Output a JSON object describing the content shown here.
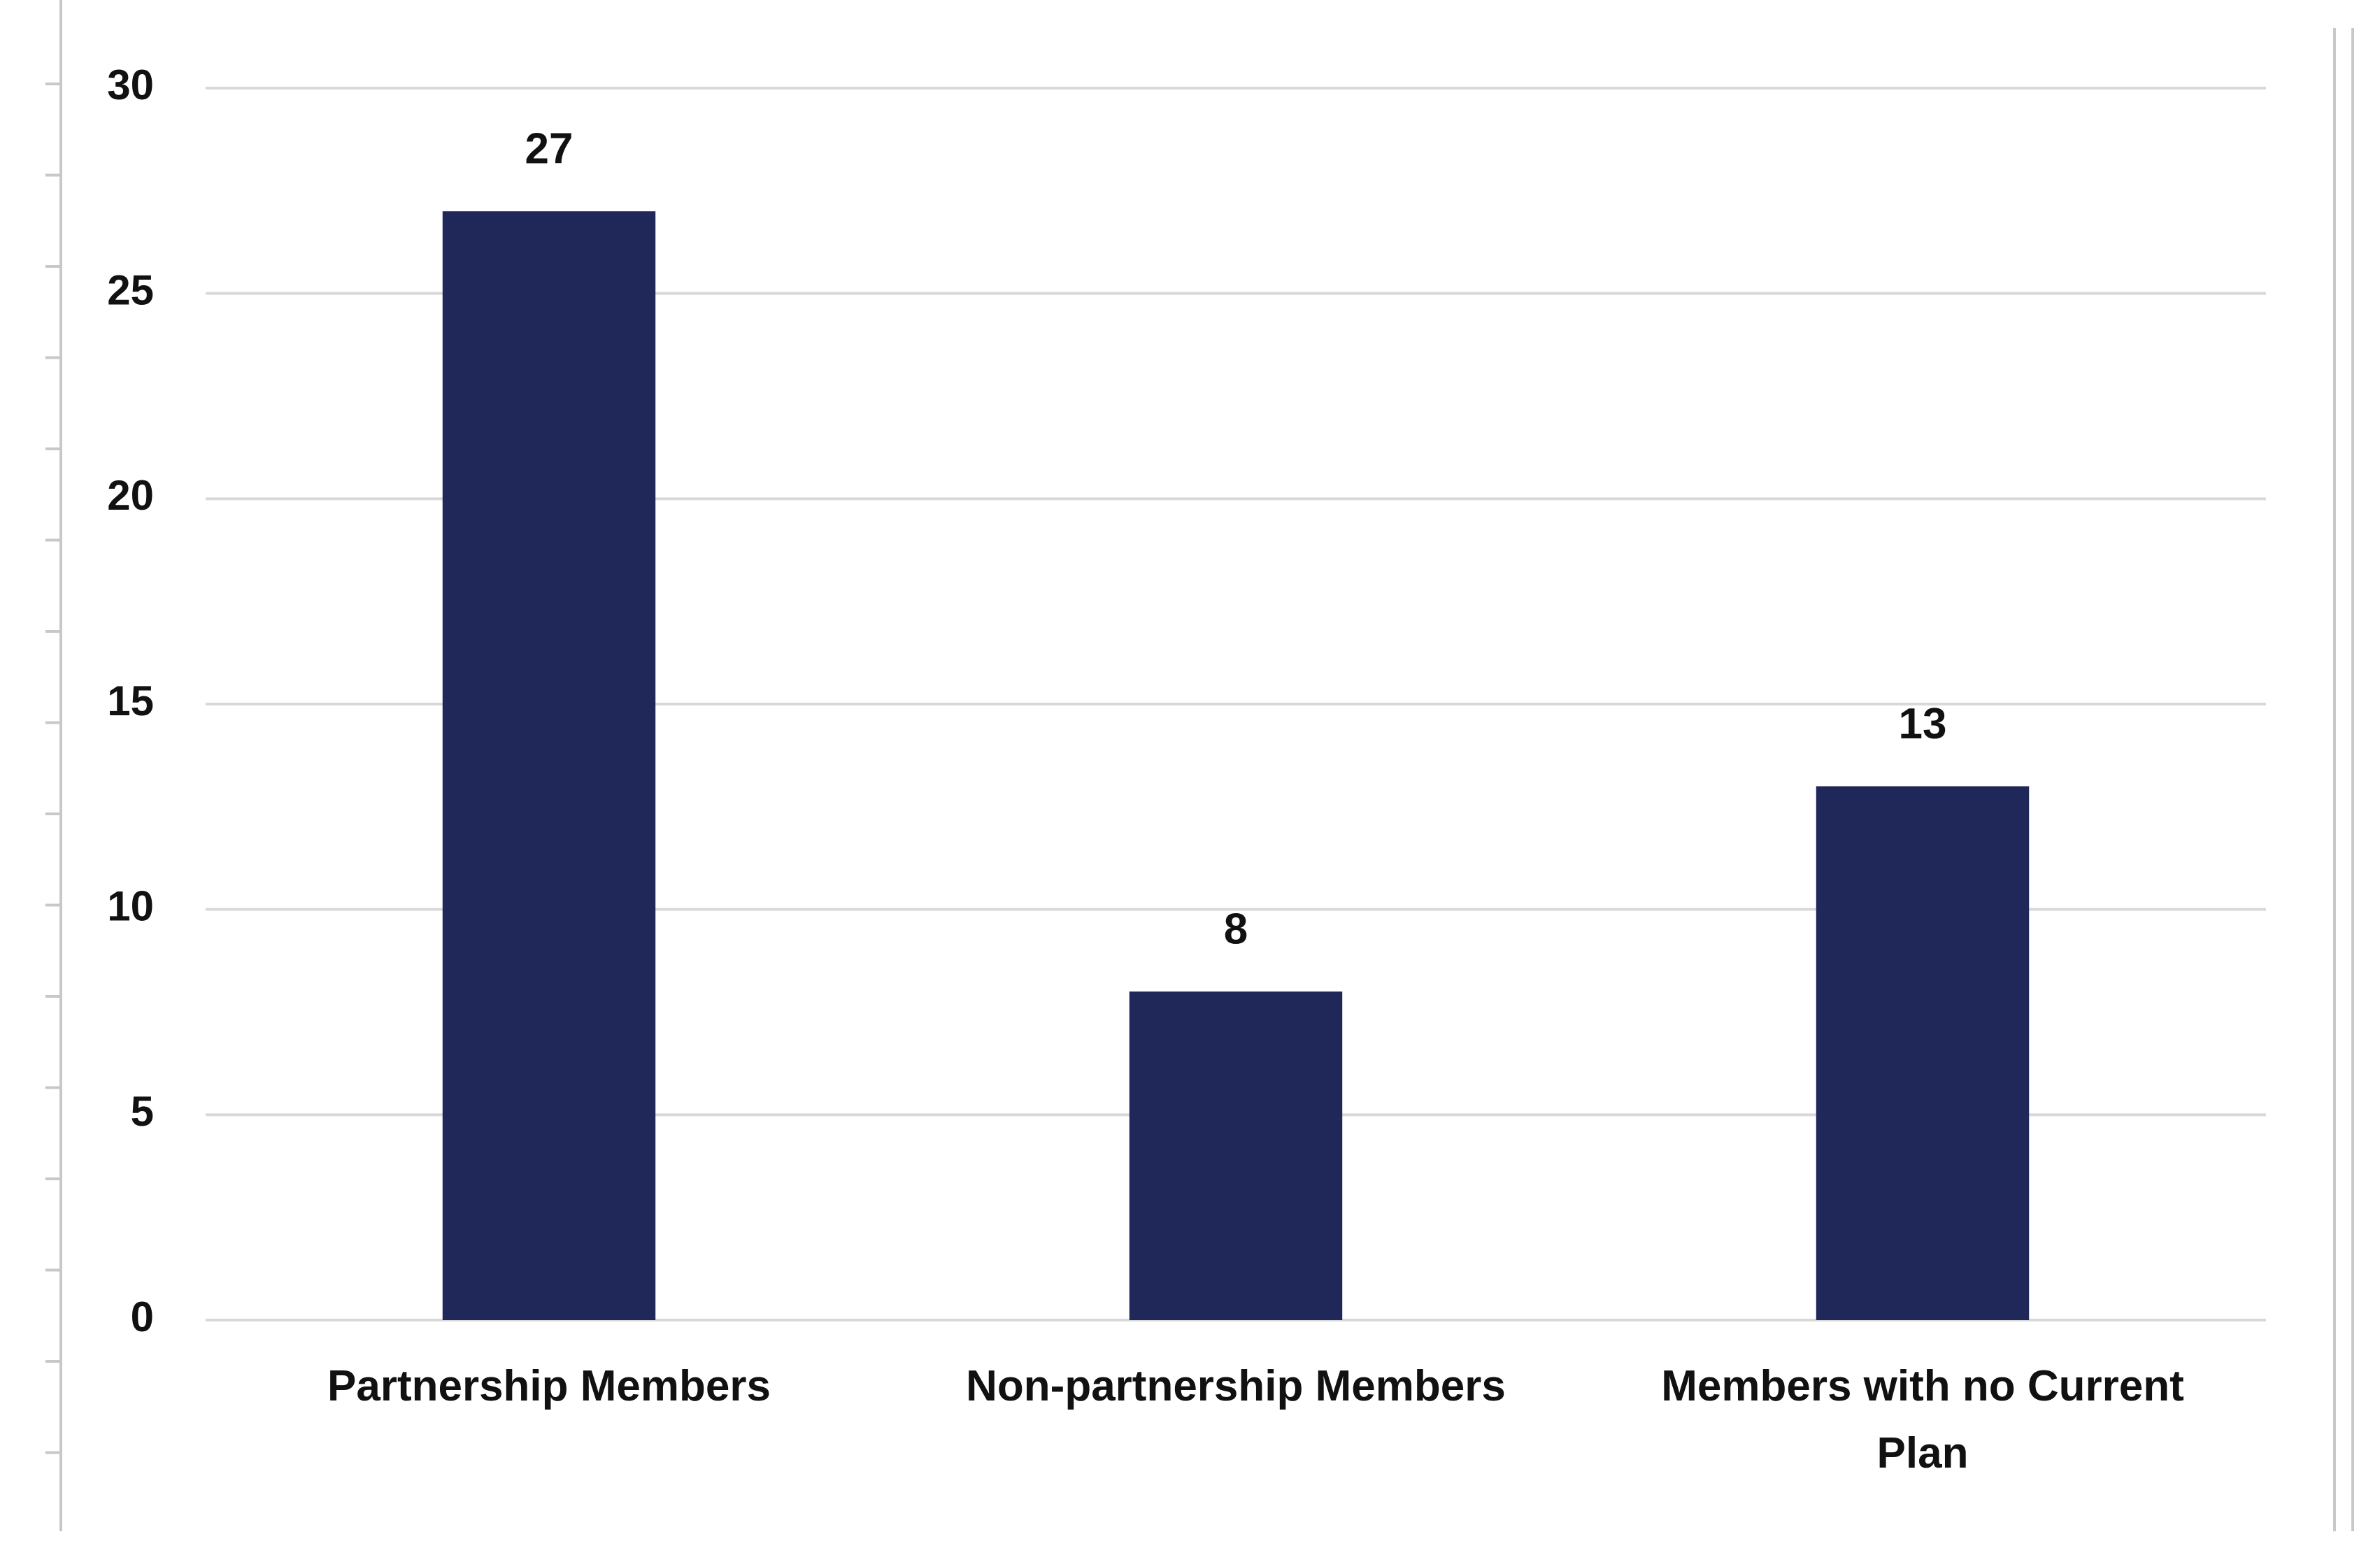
{
  "chart_data": {
    "type": "bar",
    "categories": [
      "Partnership Members",
      "Non-partnership Members",
      "Members with no Current Plan"
    ],
    "values": [
      27,
      8,
      13
    ],
    "color": "#20285a",
    "ylim": [
      0,
      30
    ],
    "yticks": [
      0,
      5,
      10,
      15,
      20,
      25,
      30
    ],
    "grid": true
  }
}
